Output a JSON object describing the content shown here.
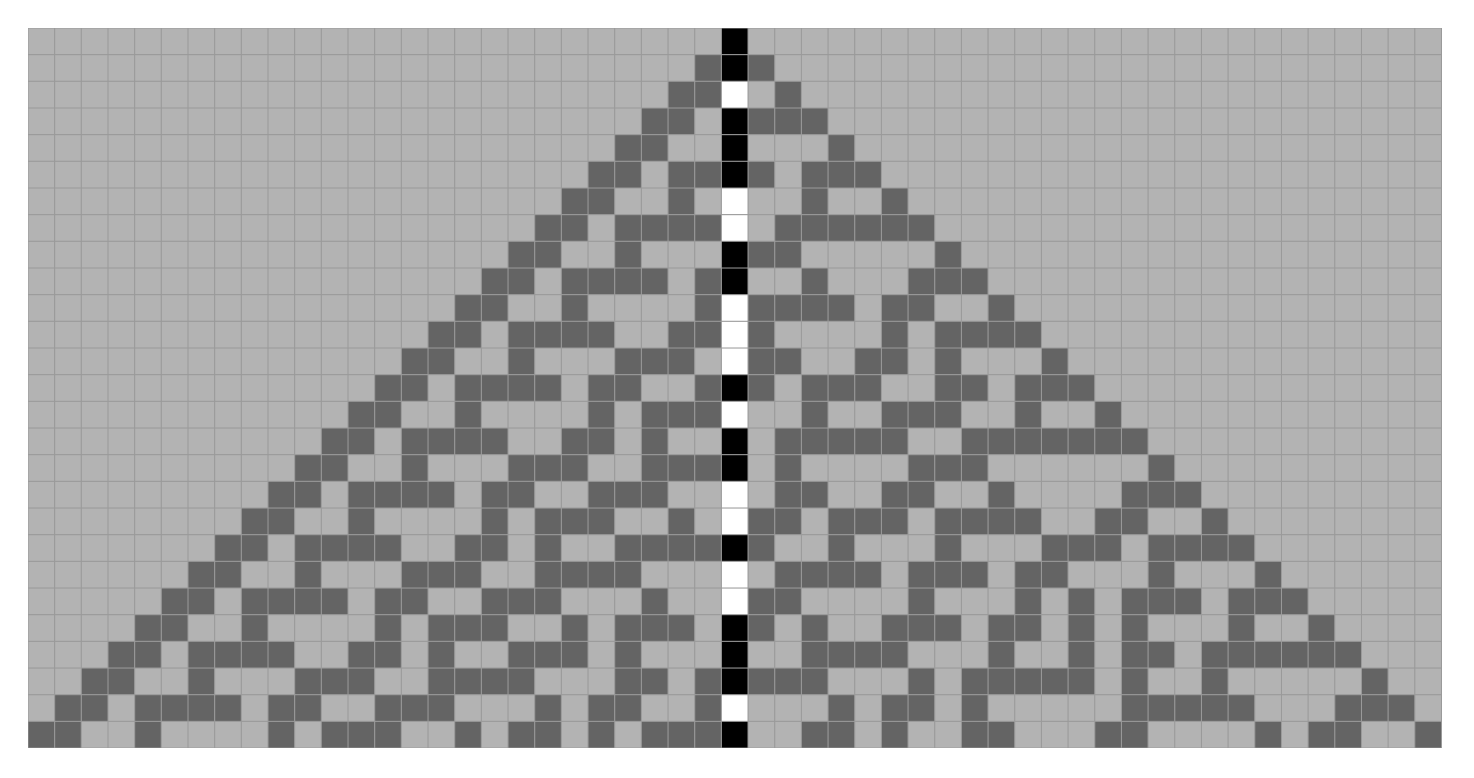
{
  "diagram": {
    "type": "cellular-automaton-rule-30",
    "columns": 53,
    "rows": 27,
    "center_column": 26,
    "colors": {
      "background": "#b3b3b3",
      "gridline": "#9a9a9a",
      "dead": "#b3b3b3",
      "alive": "#646464",
      "center_alive": "#000000",
      "center_dead": "#ffffff"
    }
  }
}
